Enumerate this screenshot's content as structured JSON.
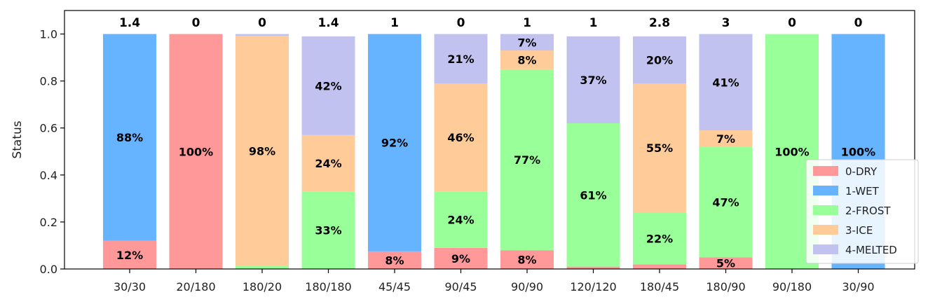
{
  "chart_data": {
    "type": "bar",
    "stacked": true,
    "title": "",
    "xlabel": "",
    "ylabel": "Status",
    "ylim": [
      0,
      1.1
    ],
    "yticks": [
      "0.0",
      "0.2",
      "0.4",
      "0.6",
      "0.8",
      "1.0"
    ],
    "grid": false,
    "legend_position": "bottom-right",
    "categories": [
      "30/30",
      "20/180",
      "180/20",
      "180/180",
      "45/45",
      "90/45",
      "90/90",
      "120/120",
      "180/45",
      "180/90",
      "90/180",
      "30/90"
    ],
    "top_labels": [
      "1.4",
      "0",
      "0",
      "1.4",
      "1",
      "0",
      "1",
      "1",
      "2.8",
      "3",
      "0",
      "0"
    ],
    "series": [
      {
        "name": "0-DRY",
        "color": "#ff9999",
        "values": [
          0.12,
          1.0,
          0.0,
          0.0,
          0.075,
          0.09,
          0.08,
          0.01,
          0.02,
          0.05,
          0.0,
          0.0
        ],
        "labels": [
          "12%",
          "100%",
          "",
          "",
          "8%",
          "9%",
          "8%",
          "",
          "",
          "5%",
          "",
          ""
        ]
      },
      {
        "name": "1-WET",
        "color": "#66b3ff",
        "values": [
          0.88,
          0.0,
          0.0,
          0.0,
          0.925,
          0.0,
          0.0,
          0.0,
          0.0,
          0.0,
          0.0,
          1.0
        ],
        "labels": [
          "88%",
          "",
          "",
          "",
          "92%",
          "",
          "",
          "",
          "",
          "",
          "",
          "100%"
        ]
      },
      {
        "name": "2-FROST",
        "color": "#99ff99",
        "values": [
          0.0,
          0.0,
          0.012,
          0.33,
          0.0,
          0.24,
          0.77,
          0.61,
          0.22,
          0.47,
          1.0,
          0.0
        ],
        "labels": [
          "",
          "",
          "",
          "33%",
          "",
          "24%",
          "77%",
          "61%",
          "22%",
          "47%",
          "100%",
          ""
        ]
      },
      {
        "name": "3-ICE",
        "color": "#ffcc99",
        "values": [
          0.0,
          0.0,
          0.98,
          0.24,
          0.0,
          0.46,
          0.08,
          0.0,
          0.55,
          0.07,
          0.0,
          0.0
        ],
        "labels": [
          "",
          "",
          "98%",
          "24%",
          "",
          "46%",
          "8%",
          "",
          "55%",
          "7%",
          "",
          ""
        ]
      },
      {
        "name": "4-MELTED",
        "color": "#c2c2f0",
        "values": [
          0.0,
          0.0,
          0.008,
          0.42,
          0.0,
          0.21,
          0.07,
          0.37,
          0.2,
          0.41,
          0.0,
          0.0
        ],
        "labels": [
          "",
          "",
          "",
          "42%",
          "",
          "21%",
          "7%",
          "37%",
          "20%",
          "41%",
          "",
          ""
        ]
      }
    ]
  }
}
